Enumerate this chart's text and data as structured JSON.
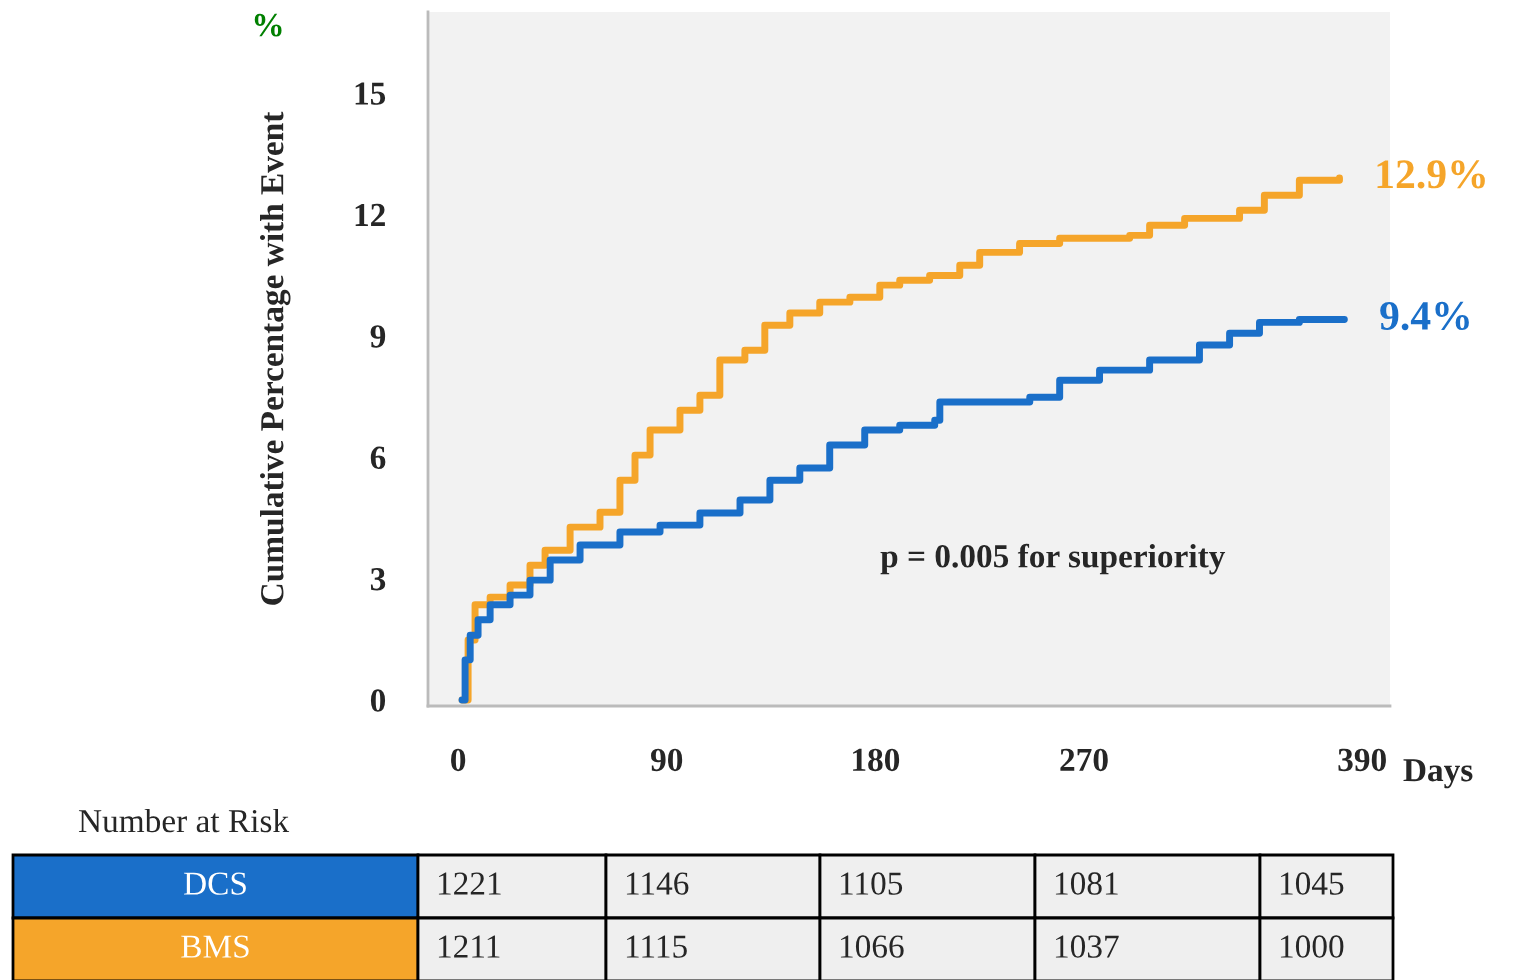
{
  "chart_data": {
    "type": "step",
    "ylabel": "Cumulative Percentage with Event",
    "xlabel": "Days",
    "xlim": [
      -13,
      402
    ],
    "ylim": [
      -0.15,
      17
    ],
    "xticks": [
      0,
      90,
      180,
      270,
      390
    ],
    "yticks": [
      0,
      3,
      6,
      9,
      12,
      15
    ],
    "grid": false,
    "legend": false,
    "line_style": "solid",
    "marker": "none",
    "series": [
      {
        "name": "BMS",
        "color": "#f5a52a",
        "x": [
          1.7,
          4.3,
          7.3,
          13.8,
          22.4,
          31,
          37.5,
          48.3,
          61.2,
          69.8,
          76.3,
          82.8,
          95.7,
          104.3,
          112.9,
          123.7,
          132.3,
          143.1,
          156,
          169,
          181.9,
          190.5,
          203.4,
          216.4,
          225,
          242.2,
          259.5,
          289.7,
          298.3,
          313.4,
          337.1,
          347.8,
          362.9,
          380.2
        ],
        "values": [
          0,
          1.48,
          2.35,
          2.54,
          2.84,
          3.33,
          3.7,
          4.27,
          4.64,
          5.43,
          6.05,
          6.67,
          7.16,
          7.53,
          8.4,
          8.64,
          9.26,
          9.56,
          9.83,
          9.95,
          10.25,
          10.37,
          10.49,
          10.74,
          11.06,
          11.28,
          11.41,
          11.48,
          11.73,
          11.9,
          12.1,
          12.47,
          12.84,
          12.9
        ]
      },
      {
        "name": "DCS",
        "color": "#1a6fc9",
        "x": [
          1.7,
          3.0,
          5.2,
          8.6,
          13.8,
          22.4,
          31,
          39.7,
          52.6,
          69.8,
          87.1,
          104.3,
          121.6,
          134.5,
          147.4,
          160.3,
          175.4,
          190.5,
          205.6,
          207.8,
          246.6,
          259.5,
          276.7,
          298.3,
          319.8,
          332.8,
          345.7,
          362.9,
          382.3
        ],
        "values": [
          0,
          0.99,
          1.6,
          1.98,
          2.35,
          2.59,
          2.96,
          3.46,
          3.83,
          4.15,
          4.32,
          4.62,
          4.94,
          5.43,
          5.73,
          6.3,
          6.67,
          6.79,
          6.91,
          7.36,
          7.48,
          7.9,
          8.15,
          8.4,
          8.77,
          9.06,
          9.33,
          9.4,
          9.4
        ]
      }
    ],
    "annotations": [
      {
        "text": "12.9%",
        "x": 380.2,
        "y": 12.9
      },
      {
        "text": "9.4%",
        "x": 382.3,
        "y": 9.4
      },
      "p = 0.005 for superiority",
      "%",
      "Number at Risk",
      "1221",
      "1146",
      "1105",
      "1081",
      "1045",
      "1211",
      "1115",
      "1066",
      "1037",
      "1000"
    ]
  }
}
